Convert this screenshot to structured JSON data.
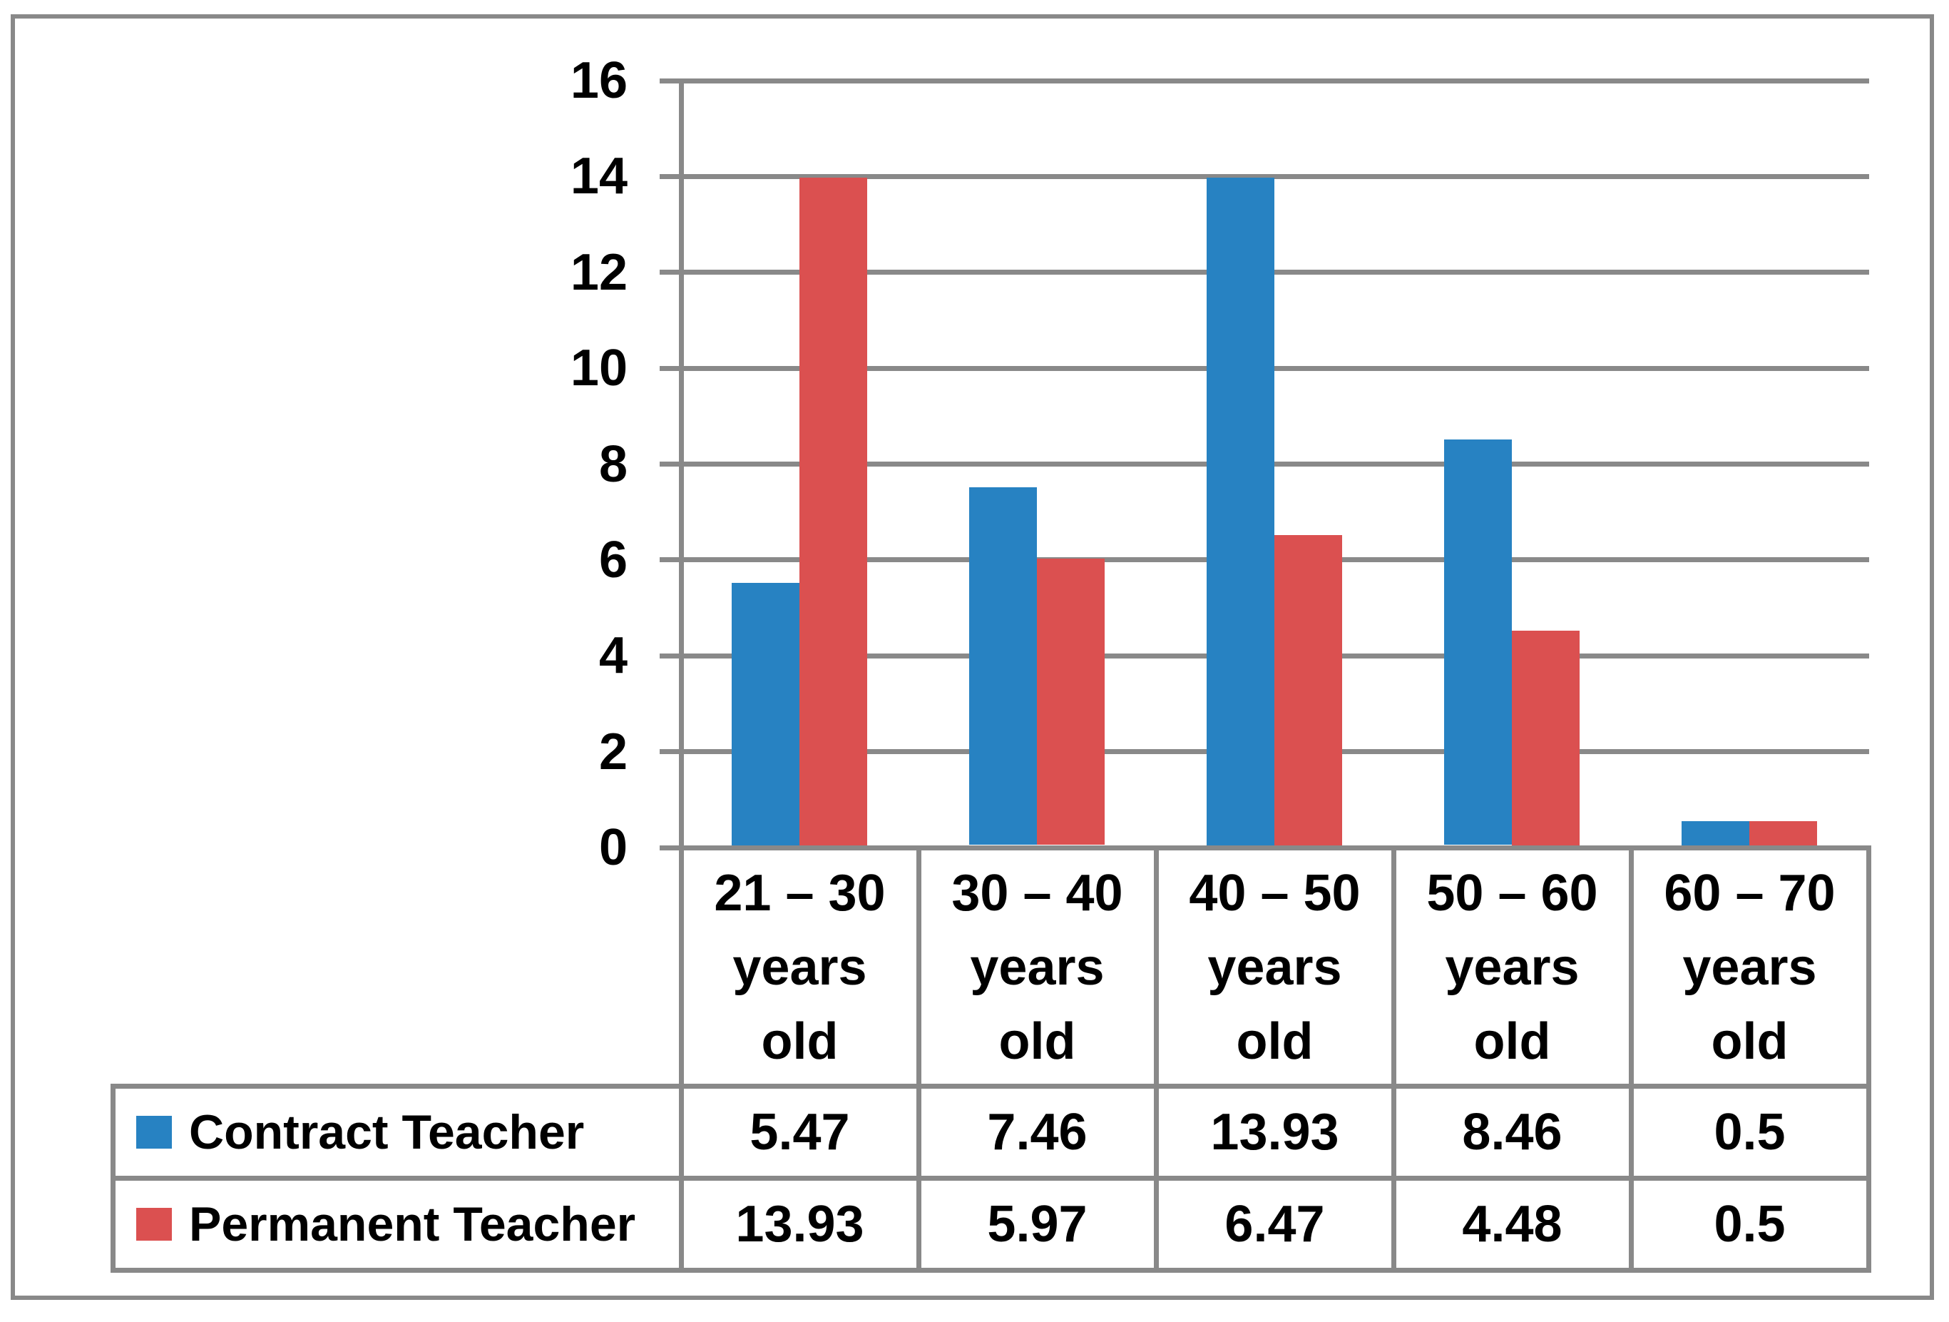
{
  "chart_data": {
    "type": "bar",
    "title": "",
    "xlabel": "",
    "ylabel": "",
    "categories": [
      {
        "label": "21 – 30 years old",
        "display": "21 – 30\nyears\nold"
      },
      {
        "label": "30 – 40 years old",
        "display": "30 – 40\nyears\nold"
      },
      {
        "label": "40 – 50 years old",
        "display": "40 – 50\nyears\nold"
      },
      {
        "label": "50 – 60 years old",
        "display": "50 – 60\nyears\nold"
      },
      {
        "label": "60 – 70 years old",
        "display": "60 – 70\nyears\nold"
      }
    ],
    "series": [
      {
        "name": "Contract Teacher",
        "color": "#2782C2",
        "values": [
          5.47,
          7.46,
          13.93,
          8.46,
          0.5
        ]
      },
      {
        "name": "Permanent Teacher",
        "color": "#DB5050",
        "values": [
          13.93,
          5.97,
          6.47,
          4.48,
          0.5
        ]
      }
    ],
    "y_axis": {
      "min": 0,
      "max": 16,
      "step": 2,
      "tick_labels": [
        "0",
        "2",
        "4",
        "6",
        "8",
        "10",
        "12",
        "14",
        "16"
      ]
    },
    "grid": true,
    "gridline_color": "#898989",
    "legend_position": "table-left-column",
    "data_table_shown": true
  }
}
